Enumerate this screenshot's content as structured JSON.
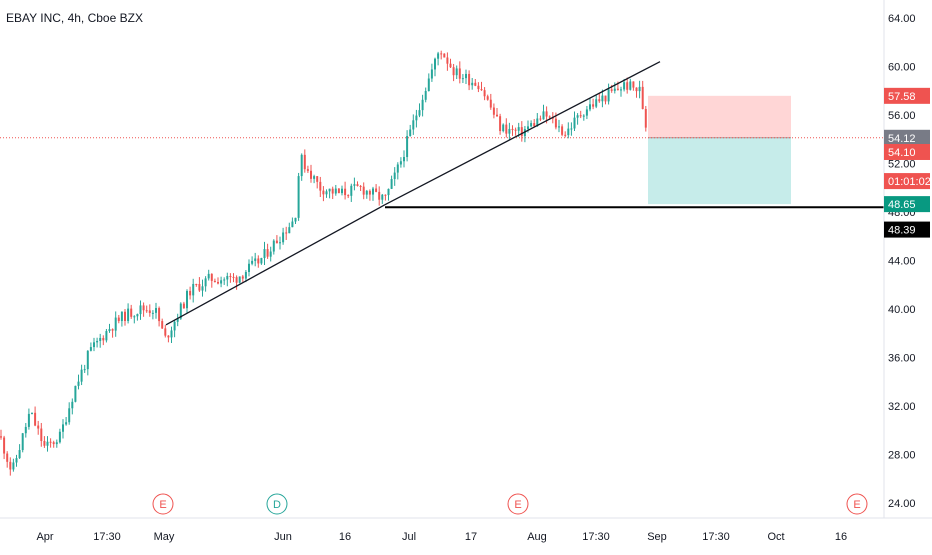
{
  "chart_data": {
    "type": "candlestick",
    "title": "EBAY INC, 4h, Cboe BZX",
    "y_axis_ticks": [
      "64.00",
      "60.00",
      "56.00",
      "52.00",
      "48.00",
      "44.00",
      "40.00",
      "36.00",
      "32.00",
      "28.00",
      "24.00"
    ],
    "x_axis_ticks": [
      "Apr",
      "17:30",
      "May",
      "Jun",
      "16",
      "Jul",
      "17",
      "Aug",
      "17:30",
      "Sep",
      "17:30",
      "Oct",
      "16"
    ],
    "ylim": [
      23,
      65.5
    ],
    "scale": "linear",
    "price_labels": {
      "target": "57.58",
      "last": "54.12",
      "current": "54.10",
      "countdown": "01:01:02",
      "stop": "48.65",
      "support": "48.39"
    },
    "event_markers": [
      "E",
      "D",
      "E",
      "E"
    ],
    "colors": {
      "up": "#26a69a",
      "down": "#ef5350",
      "target_zone": "#ffd6d6",
      "stop_zone": "#c6ecea",
      "last_price_line": "#ef5350"
    },
    "price_path_anchors": [
      [
        0,
        29.5
      ],
      [
        12,
        26.5
      ],
      [
        30,
        31.5
      ],
      [
        45,
        28.5
      ],
      [
        60,
        29.5
      ],
      [
        75,
        33.5
      ],
      [
        90,
        36.5
      ],
      [
        110,
        38.5
      ],
      [
        125,
        39.5
      ],
      [
        140,
        40.0
      ],
      [
        155,
        40.0
      ],
      [
        165,
        37.5
      ],
      [
        190,
        41.5
      ],
      [
        210,
        42.5
      ],
      [
        235,
        42.5
      ],
      [
        260,
        44.0
      ],
      [
        295,
        47.5
      ],
      [
        300,
        52.5
      ],
      [
        320,
        50.0
      ],
      [
        340,
        49.5
      ],
      [
        360,
        50.0
      ],
      [
        385,
        49.0
      ],
      [
        400,
        52.0
      ],
      [
        420,
        57.0
      ],
      [
        440,
        61.5
      ],
      [
        455,
        59.5
      ],
      [
        480,
        58.5
      ],
      [
        500,
        55.0
      ],
      [
        520,
        54.5
      ],
      [
        545,
        56.0
      ],
      [
        565,
        54.5
      ],
      [
        585,
        56.5
      ],
      [
        605,
        57.5
      ],
      [
        625,
        58.5
      ],
      [
        640,
        58.0
      ],
      [
        648,
        54.1
      ]
    ],
    "trendlines": [
      {
        "from": [
          "May",
          38.7
        ],
        "to": [
          "Jun 20",
          48.6
        ]
      },
      {
        "from": [
          "Jun 20",
          48.6
        ],
        "to": [
          "Aug 30",
          60.4
        ]
      }
    ],
    "horizontal_lines": [
      {
        "value": 48.39
      }
    ],
    "position": {
      "entry": 54.12,
      "target": 57.58,
      "stop": 48.65
    }
  }
}
